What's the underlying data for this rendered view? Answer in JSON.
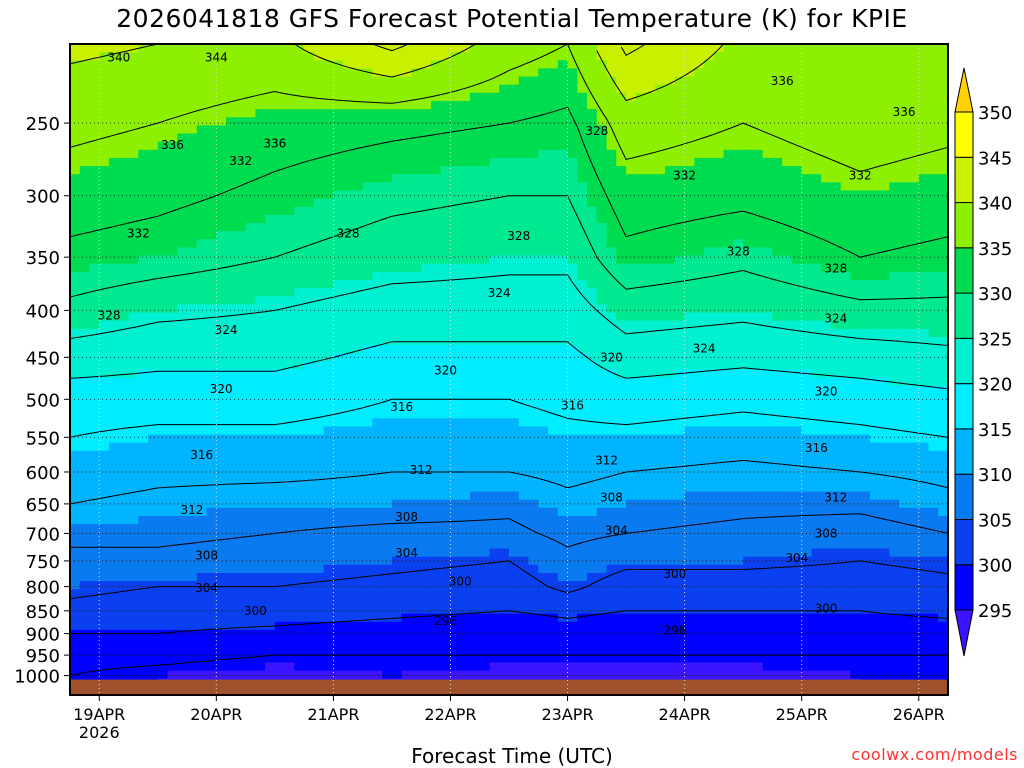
{
  "chart_data": {
    "type": "heatmap",
    "title": "2026041818 GFS Forecast Potential Temperature (K) for KPIE",
    "xlabel": "Forecast Time (UTC)",
    "ylabel": "",
    "credit": "coolwx.com/models",
    "x_units": "forecast hours since 2026-04-18 18Z",
    "xlim": [
      0,
      180
    ],
    "ylim": [
      1050,
      205
    ],
    "y_scale": "log-pressure (hPa)",
    "x_ticks": [
      {
        "hour": 6,
        "label": "19APR",
        "sublabel": "2026"
      },
      {
        "hour": 30,
        "label": "20APR"
      },
      {
        "hour": 54,
        "label": "21APR"
      },
      {
        "hour": 78,
        "label": "22APR"
      },
      {
        "hour": 102,
        "label": "23APR"
      },
      {
        "hour": 126,
        "label": "24APR"
      },
      {
        "hour": 150,
        "label": "25APR"
      },
      {
        "hour": 174,
        "label": "26APR"
      }
    ],
    "y_ticks": [
      250,
      300,
      350,
      400,
      450,
      500,
      550,
      600,
      650,
      700,
      750,
      800,
      850,
      900,
      950,
      1000
    ],
    "grid": true,
    "levels_hpa": [
      1000,
      950,
      900,
      850,
      800,
      750,
      700,
      650,
      600,
      550,
      500,
      450,
      400,
      350,
      300,
      250,
      205
    ],
    "columns": [
      {
        "hour": 0,
        "theta": [
          296,
          297,
          300,
          303,
          305,
          307,
          309,
          312,
          314,
          316,
          318,
          322,
          327,
          331,
          334,
          337,
          341
        ]
      },
      {
        "hour": 18,
        "theta": [
          295,
          297,
          300,
          302,
          304,
          307,
          309,
          311,
          313,
          315,
          318,
          321,
          325,
          330,
          333,
          336,
          340
        ]
      },
      {
        "hour": 42,
        "theta": [
          294,
          296,
          299,
          302,
          304,
          306,
          308,
          310,
          313,
          315,
          318,
          321,
          324,
          328,
          331,
          334,
          339
        ]
      },
      {
        "hour": 66,
        "theta": [
          295,
          296,
          298,
          301,
          303,
          305,
          307,
          310,
          312,
          314,
          316,
          319,
          322,
          326,
          329,
          333,
          345
        ]
      },
      {
        "hour": 90,
        "theta": [
          294,
          296,
          297,
          300,
          302,
          304,
          307,
          309,
          312,
          314,
          316,
          319,
          322,
          325,
          328,
          332,
          338
        ]
      },
      {
        "hour": 102,
        "theta": [
          294,
          296,
          298,
          301,
          305,
          307,
          309,
          311,
          313,
          315,
          317,
          319,
          322,
          325,
          328,
          331,
          336
        ]
      },
      {
        "hour": 114,
        "theta": [
          294,
          296,
          297,
          300,
          302,
          305,
          308,
          310,
          312,
          315,
          318,
          322,
          326,
          331,
          334,
          338,
          345
        ]
      },
      {
        "hour": 138,
        "theta": [
          294,
          296,
          298,
          300,
          302,
          305,
          307,
          309,
          311,
          314,
          317,
          321,
          325,
          329,
          333,
          336,
          339
        ]
      },
      {
        "hour": 162,
        "theta": [
          295,
          296,
          298,
          300,
          302,
          304,
          306,
          309,
          312,
          315,
          318,
          322,
          327,
          332,
          335,
          338,
          339
        ]
      },
      {
        "hour": 180,
        "theta": [
          295,
          296,
          298,
          301,
          303,
          305,
          308,
          311,
          313,
          316,
          319,
          323,
          327,
          331,
          334,
          337,
          340
        ]
      }
    ],
    "contour_interval": 4,
    "colorbar": {
      "boundaries": [
        295,
        300,
        305,
        310,
        315,
        320,
        325,
        330,
        335,
        340,
        345,
        350
      ],
      "labels": [
        "295",
        "300",
        "305",
        "310",
        "315",
        "320",
        "325",
        "330",
        "335",
        "340",
        "345",
        "350"
      ],
      "colors": [
        "#3c14ff",
        "#0000ff",
        "#0a40f0",
        "#0a7af0",
        "#00b4ff",
        "#00ecff",
        "#00f0d2",
        "#00e890",
        "#00dc50",
        "#8cf000",
        "#c8f000",
        "#ffff00",
        "#ffd200"
      ]
    },
    "ground_color": "#a0522d",
    "annotations": [
      {
        "hour": 10,
        "p": 212,
        "text": "340"
      },
      {
        "hour": 30,
        "p": 212,
        "text": "344"
      },
      {
        "hour": 146,
        "p": 225,
        "text": "336"
      },
      {
        "hour": 21,
        "p": 264,
        "text": "336"
      },
      {
        "hour": 42,
        "p": 263,
        "text": "336"
      },
      {
        "hour": 35,
        "p": 275,
        "text": "332"
      },
      {
        "hour": 171,
        "p": 243,
        "text": "336"
      },
      {
        "hour": 92,
        "p": 332,
        "text": "328"
      },
      {
        "hour": 108,
        "p": 255,
        "text": "328"
      },
      {
        "hour": 126,
        "p": 285,
        "text": "332"
      },
      {
        "hour": 14,
        "p": 330,
        "text": "332"
      },
      {
        "hour": 57,
        "p": 330,
        "text": "328"
      },
      {
        "hour": 137,
        "p": 345,
        "text": "328"
      },
      {
        "hour": 162,
        "p": 285,
        "text": "332"
      },
      {
        "hour": 157,
        "p": 360,
        "text": "328"
      },
      {
        "hour": 8,
        "p": 405,
        "text": "328"
      },
      {
        "hour": 32,
        "p": 420,
        "text": "324"
      },
      {
        "hour": 88,
        "p": 383,
        "text": "324"
      },
      {
        "hour": 130,
        "p": 440,
        "text": "324"
      },
      {
        "hour": 157,
        "p": 408,
        "text": "324"
      },
      {
        "hour": 31,
        "p": 487,
        "text": "320"
      },
      {
        "hour": 77,
        "p": 465,
        "text": "320"
      },
      {
        "hour": 111,
        "p": 450,
        "text": "320"
      },
      {
        "hour": 155,
        "p": 490,
        "text": "320"
      },
      {
        "hour": 68,
        "p": 510,
        "text": "316"
      },
      {
        "hour": 103,
        "p": 508,
        "text": "316"
      },
      {
        "hour": 27,
        "p": 575,
        "text": "316"
      },
      {
        "hour": 153,
        "p": 565,
        "text": "316"
      },
      {
        "hour": 72,
        "p": 597,
        "text": "312"
      },
      {
        "hour": 110,
        "p": 583,
        "text": "312"
      },
      {
        "hour": 25,
        "p": 660,
        "text": "312"
      },
      {
        "hour": 157,
        "p": 640,
        "text": "312"
      },
      {
        "hour": 69,
        "p": 672,
        "text": "308"
      },
      {
        "hour": 111,
        "p": 640,
        "text": "308"
      },
      {
        "hour": 28,
        "p": 740,
        "text": "308"
      },
      {
        "hour": 155,
        "p": 700,
        "text": "308"
      },
      {
        "hour": 69,
        "p": 735,
        "text": "304"
      },
      {
        "hour": 112,
        "p": 695,
        "text": "304"
      },
      {
        "hour": 28,
        "p": 803,
        "text": "304"
      },
      {
        "hour": 149,
        "p": 745,
        "text": "304"
      },
      {
        "hour": 38,
        "p": 850,
        "text": "300"
      },
      {
        "hour": 80,
        "p": 790,
        "text": "300"
      },
      {
        "hour": 124,
        "p": 775,
        "text": "300"
      },
      {
        "hour": 155,
        "p": 845,
        "text": "300"
      },
      {
        "hour": 77,
        "p": 872,
        "text": "296"
      },
      {
        "hour": 124,
        "p": 893,
        "text": "296"
      }
    ]
  }
}
